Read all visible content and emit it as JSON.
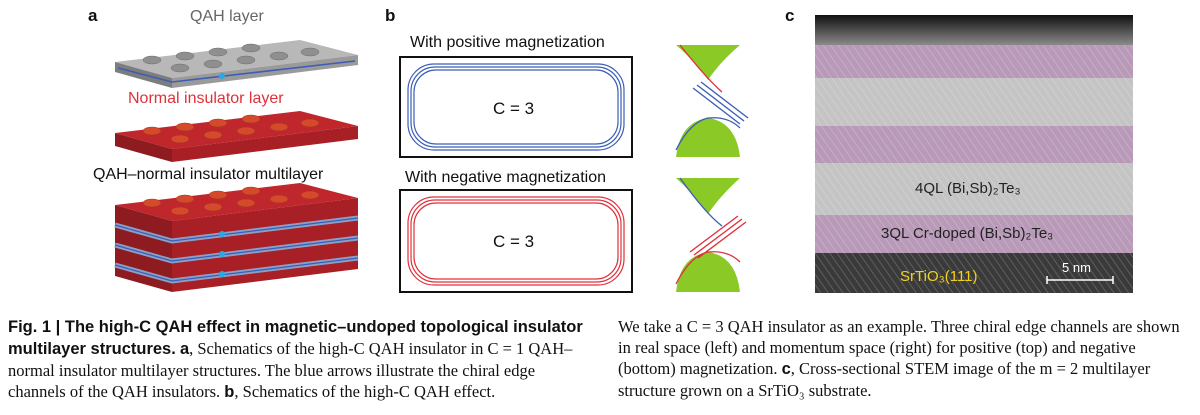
{
  "figure": {
    "panel_a": {
      "letter": "a",
      "qah_layer_label": "QAH layer",
      "normal_layer_label": "Normal insulator layer",
      "multilayer_label": "QAH–normal insulator multilayer"
    },
    "panel_b": {
      "letter": "b",
      "positive_title": "With positive magnetization",
      "negative_title": "With negative magnetization",
      "chern_top": "C = 3",
      "chern_bottom": "C = 3",
      "colors": {
        "positive": "#3b5db5",
        "negative": "#e0303a",
        "band": "#8ac926"
      }
    },
    "panel_c": {
      "letter": "c",
      "layer_4ql": "4QL (Bi,Sb)₂Te₃",
      "layer_3ql": "3QL Cr-doped (Bi,Sb)₂Te₃",
      "substrate": "SrTiO₃(111)",
      "scale_bar": "5 nm"
    }
  },
  "caption": {
    "left_bold": "Fig. 1 | The high-C QAH effect in magnetic–undoped topological insulator multilayer structures.",
    "left_a": "a",
    "left_text_1": ", Schematics of the high-C QAH insulator in C = 1 QAH–normal insulator multilayer structures. The blue arrows illustrate the chiral edge channels of the QAH insulators.",
    "left_b": "b",
    "left_text_2": ", Schematics of the high-C QAH effect.",
    "right_text_1": "We take a C = 3 QAH insulator as an example. Three chiral edge channels are shown in real space (left) and momentum space (right) for positive (top) and negative (bottom) magnetization.",
    "right_c": "c",
    "right_text_2": ", Cross-sectional STEM image of the m = 2 multilayer structure grown on a SrTiO₃ substrate."
  }
}
